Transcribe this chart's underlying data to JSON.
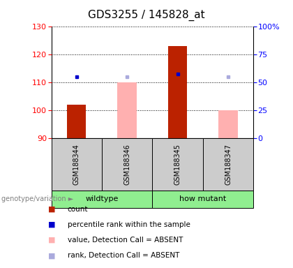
{
  "title": "GDS3255 / 145828_at",
  "samples": [
    "GSM188344",
    "GSM188346",
    "GSM188345",
    "GSM188347"
  ],
  "red_bars": [
    102,
    null,
    123,
    null
  ],
  "pink_bars": [
    null,
    110,
    null,
    100
  ],
  "blue_squares": [
    112,
    null,
    113,
    null
  ],
  "lightblue_squares": [
    null,
    112,
    null,
    112
  ],
  "ylim": [
    90,
    130
  ],
  "yticks_left": [
    90,
    100,
    110,
    120,
    130
  ],
  "yticks_right": [
    0,
    25,
    50,
    75,
    100
  ],
  "ytick_right_labels": [
    "0",
    "25",
    "50",
    "75",
    "100%"
  ],
  "bar_width": 0.38,
  "red_color": "#BB2200",
  "pink_color": "#FFB0B0",
  "blue_color": "#0000CC",
  "lightblue_color": "#AAAADD",
  "title_fontsize": 11,
  "tick_fontsize": 8,
  "legend_fontsize": 7.5,
  "bg_color": "#CCCCCC",
  "green_color": "#90EE90"
}
